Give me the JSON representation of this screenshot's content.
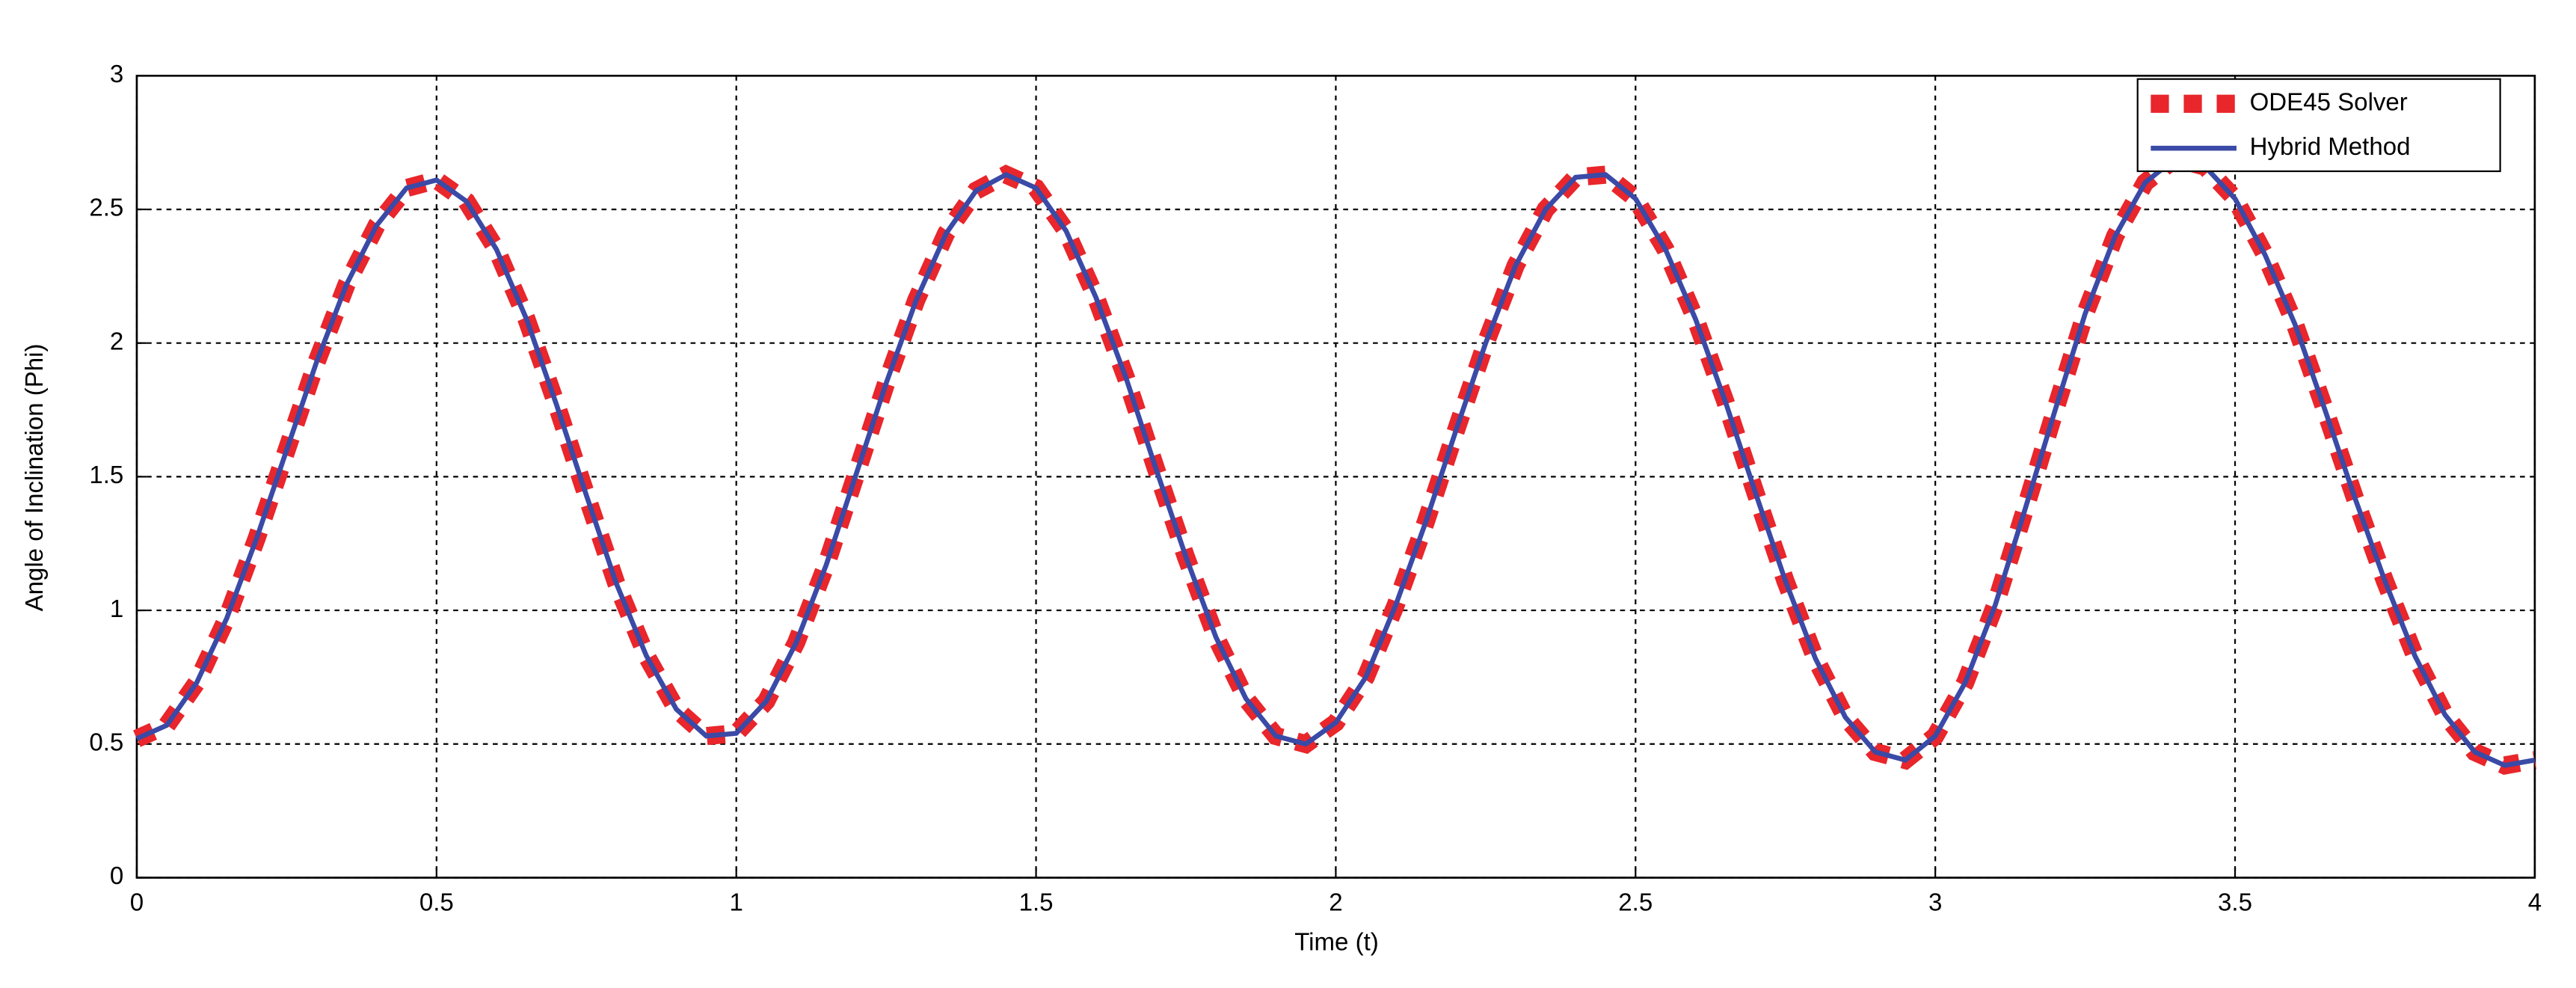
{
  "chart_data": {
    "type": "line",
    "xlabel": "Time (t)",
    "ylabel": "Angle of Inclination (Phi)",
    "x": [
      0,
      0.05,
      0.1,
      0.15,
      0.2,
      0.25,
      0.3,
      0.35,
      0.4,
      0.45,
      0.5,
      0.55,
      0.6,
      0.65,
      0.7,
      0.75,
      0.8,
      0.85,
      0.9,
      0.95,
      1,
      1.05,
      1.1,
      1.15,
      1.2,
      1.25,
      1.3,
      1.35,
      1.4,
      1.45,
      1.5,
      1.55,
      1.6,
      1.65,
      1.7,
      1.75,
      1.8,
      1.85,
      1.9,
      1.95,
      2,
      2.05,
      2.1,
      2.15,
      2.2,
      2.25,
      2.3,
      2.35,
      2.4,
      2.45,
      2.5,
      2.55,
      2.6,
      2.65,
      2.7,
      2.75,
      2.8,
      2.85,
      2.9,
      2.95,
      3,
      3.05,
      3.1,
      3.15,
      3.2,
      3.25,
      3.3,
      3.35,
      3.4,
      3.45,
      3.5,
      3.55,
      3.6,
      3.65,
      3.7,
      3.75,
      3.8,
      3.85,
      3.9,
      3.95,
      4
    ],
    "series": [
      {
        "name": "ODE45 Solver",
        "color": "#e8262b",
        "style": "dashed",
        "values": [
          0.52,
          0.57,
          0.73,
          0.97,
          1.27,
          1.6,
          1.93,
          2.22,
          2.44,
          2.58,
          2.61,
          2.53,
          2.35,
          2.09,
          1.77,
          1.43,
          1.1,
          0.83,
          0.63,
          0.53,
          0.54,
          0.66,
          0.88,
          1.17,
          1.51,
          1.85,
          2.16,
          2.41,
          2.57,
          2.63,
          2.58,
          2.42,
          2.17,
          1.87,
          1.53,
          1.2,
          0.9,
          0.67,
          0.53,
          0.5,
          0.58,
          0.75,
          1.02,
          1.33,
          1.67,
          2.0,
          2.29,
          2.5,
          2.62,
          2.63,
          2.54,
          2.35,
          2.09,
          1.78,
          1.44,
          1.11,
          0.82,
          0.6,
          0.47,
          0.44,
          0.53,
          0.73,
          1.02,
          1.38,
          1.75,
          2.11,
          2.4,
          2.6,
          2.69,
          2.66,
          2.54,
          2.33,
          2.07,
          1.75,
          1.42,
          1.11,
          0.83,
          0.61,
          0.47,
          0.42,
          0.44
        ]
      },
      {
        "name": "Hybrid Method",
        "color": "#3a4aa6",
        "style": "solid",
        "values": [
          0.52,
          0.57,
          0.73,
          0.97,
          1.27,
          1.6,
          1.93,
          2.22,
          2.44,
          2.58,
          2.61,
          2.53,
          2.35,
          2.09,
          1.77,
          1.43,
          1.1,
          0.83,
          0.63,
          0.53,
          0.54,
          0.66,
          0.88,
          1.17,
          1.51,
          1.85,
          2.16,
          2.41,
          2.57,
          2.63,
          2.58,
          2.42,
          2.17,
          1.87,
          1.53,
          1.2,
          0.9,
          0.67,
          0.53,
          0.5,
          0.58,
          0.75,
          1.02,
          1.33,
          1.67,
          2.0,
          2.29,
          2.5,
          2.62,
          2.63,
          2.54,
          2.35,
          2.09,
          1.78,
          1.44,
          1.11,
          0.82,
          0.6,
          0.47,
          0.44,
          0.53,
          0.73,
          1.02,
          1.38,
          1.75,
          2.11,
          2.4,
          2.6,
          2.69,
          2.66,
          2.54,
          2.33,
          2.07,
          1.75,
          1.42,
          1.11,
          0.83,
          0.61,
          0.47,
          0.42,
          0.44
        ]
      }
    ],
    "xlim": [
      0,
      4
    ],
    "xticks": [
      0,
      0.5,
      1,
      1.5,
      2,
      2.5,
      3,
      3.5,
      4
    ],
    "ylim": [
      0,
      3
    ],
    "yticks": [
      0,
      0.5,
      1,
      1.5,
      2,
      2.5,
      3
    ],
    "grid": true,
    "legend": "upper right"
  }
}
